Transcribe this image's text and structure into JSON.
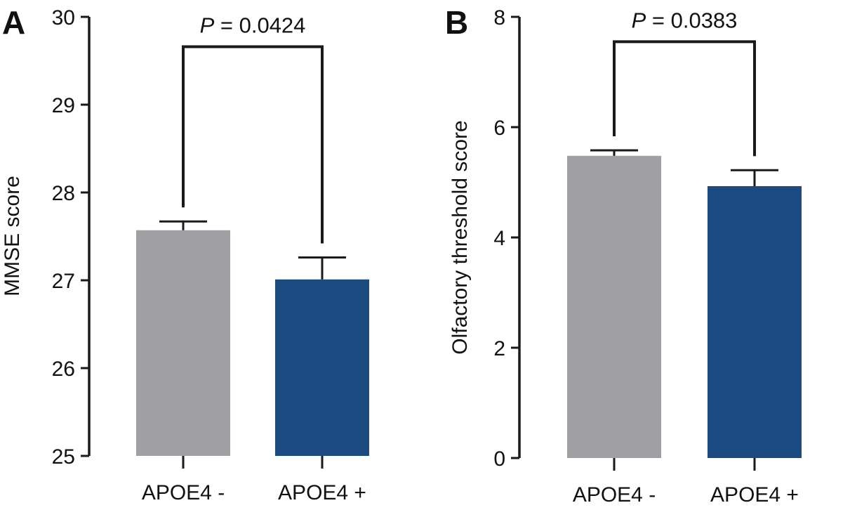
{
  "chart_data": [
    {
      "type": "bar",
      "panel_label": "A",
      "categories": [
        "APOE4 -",
        "APOE4 +"
      ],
      "values": [
        27.57,
        27.01
      ],
      "error_upper": [
        27.67,
        27.26
      ],
      "ylabel": "MMSE score",
      "ylim": [
        25,
        30
      ],
      "yticks": [
        25,
        26,
        27,
        28,
        29,
        30
      ],
      "bracket_y": 29.66,
      "p_prefix": "P",
      "p_value": "= 0.0424",
      "colors": [
        "#a0a0a4",
        "#1a4a80"
      ],
      "grid": false
    },
    {
      "type": "bar",
      "panel_label": "B",
      "categories": [
        "APOE4 -",
        "APOE4 +"
      ],
      "values": [
        5.48,
        4.93
      ],
      "error_upper": [
        5.58,
        5.22
      ],
      "ylabel": "Olfactory threshold score",
      "ylim": [
        0,
        8
      ],
      "yticks": [
        0,
        2,
        4,
        6,
        8
      ],
      "bracket_y": 7.55,
      "p_prefix": "P",
      "p_value": "= 0.0383",
      "colors": [
        "#a0a0a4",
        "#1a4a80"
      ],
      "grid": false
    }
  ]
}
